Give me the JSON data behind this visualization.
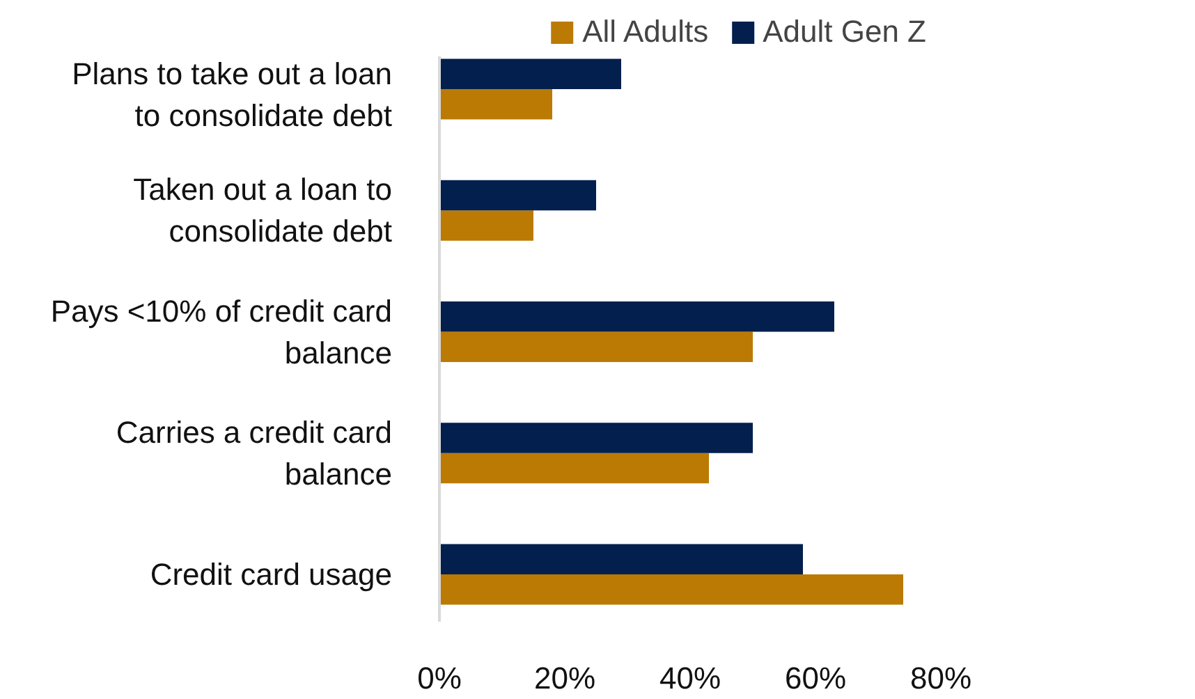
{
  "chart_data": {
    "type": "bar",
    "orientation": "horizontal",
    "categories": [
      "Plans to take out a loan to consolidate debt",
      "Taken out a loan to consolidate debt",
      "Pays <10% of credit card balance",
      "Carries a credit card balance",
      "Credit card usage"
    ],
    "series": [
      {
        "name": "All Adults",
        "color": "#bb7a04",
        "values": [
          18,
          15,
          50,
          43,
          74
        ]
      },
      {
        "name": "Adult Gen Z",
        "color": "#021f4d",
        "values": [
          29,
          25,
          63,
          50,
          58
        ]
      }
    ],
    "xlim": [
      0,
      80
    ],
    "xticks": [
      {
        "value": 0,
        "label": "0%"
      },
      {
        "value": 20,
        "label": "20%"
      },
      {
        "value": 40,
        "label": "40%"
      },
      {
        "value": 60,
        "label": "60%"
      },
      {
        "value": 80,
        "label": "80%"
      }
    ],
    "grid": false,
    "legend": "top right"
  }
}
